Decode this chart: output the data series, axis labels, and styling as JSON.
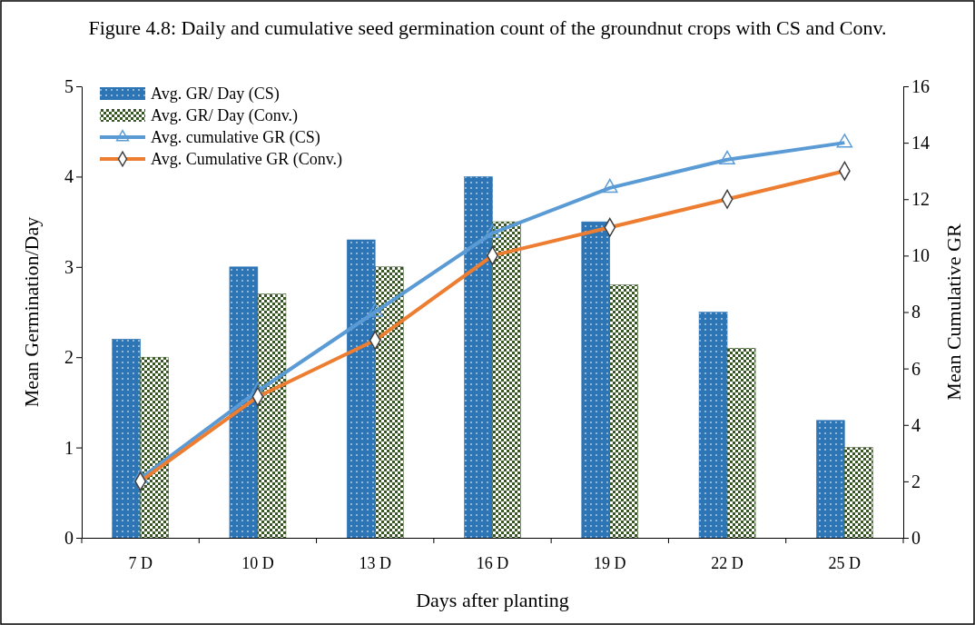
{
  "chart_data": {
    "type": "bar",
    "categories": [
      "7 D",
      "10 D",
      "13 D",
      "16 D",
      "19 D",
      "22 D",
      "25 D"
    ],
    "xlabel": "Days after planting",
    "ylabel": "Mean Germination/Day",
    "y2label": "Mean Cumulative GR",
    "ylim": [
      0,
      5
    ],
    "yticks": [
      0,
      1,
      2,
      3,
      4,
      5
    ],
    "y2lim": [
      0,
      16
    ],
    "y2ticks": [
      0,
      2,
      4,
      6,
      8,
      10,
      12,
      14,
      16
    ],
    "legend": "top left",
    "annotations": [
      "Figure 4.8: Daily and cumulative seed germination count of the groundnut crops with CS and Conv."
    ],
    "series": [
      {
        "name": "Avg. GR/ Day (CS)",
        "color": "#2e75b6",
        "values": [
          2.2,
          3.0,
          3.3,
          4.0,
          3.5,
          2.5,
          1.3
        ]
      },
      {
        "name": "Avg. GR/ Day (Conv.)",
        "color": "#375623",
        "values": [
          2.0,
          2.7,
          3.0,
          3.5,
          2.8,
          2.1,
          1.0
        ]
      },
      {
        "name": "Avg. cumulative GR (CS)",
        "type": "line",
        "axis": "y2",
        "color": "#5b9bd5",
        "marker": "triangle",
        "values": [
          2.1,
          5.2,
          8.0,
          10.8,
          12.4,
          13.4,
          14.0
        ]
      },
      {
        "name": "Avg. Cumulative GR (Conv.)",
        "type": "line",
        "axis": "y2",
        "color": "#ed7d31",
        "marker": "diamond",
        "values": [
          2.0,
          5.0,
          7.0,
          10.0,
          11.0,
          12.0,
          13.0
        ]
      }
    ]
  }
}
